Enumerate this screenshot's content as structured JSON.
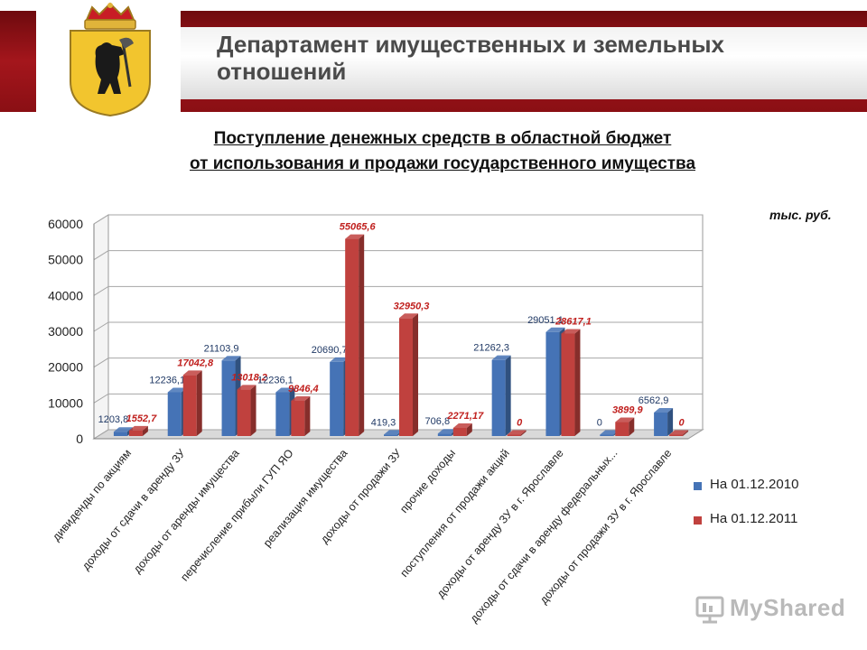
{
  "header": {
    "title": "Департамент имущественных и земельных отношений"
  },
  "chart_data": {
    "type": "bar",
    "title": "Поступление денежных средств в областной бюджет от использования и продажи государственного имущества",
    "title_lines": [
      "Поступление денежных средств в областной бюджет",
      "от использования и продажи государственного имущества"
    ],
    "unit": "тыс. руб.",
    "ylim": [
      0,
      60000
    ],
    "yticks": [
      0,
      10000,
      20000,
      30000,
      40000,
      50000,
      60000
    ],
    "grid": true,
    "legend_position": "right",
    "categories": [
      "дивиденды по акциям",
      "доходы от сдачи в аренду ЗУ",
      "доходы от аренды имущества",
      "перечисление прибыли ГУП ЯО",
      "реализация имущества",
      "доходы от продажи ЗУ",
      "прочие доходы",
      "поступления от продажи акций",
      "доходы от аренду ЗУ в г. Ярославле",
      "доходы от сдачи в аренду федеральных...",
      "доходы от продажи ЗУ в г. Ярославле"
    ],
    "series": [
      {
        "name": "На 01.12.2010",
        "color": "#4573b6",
        "label_color": "#1f3864",
        "values": [
          1203.8,
          12236.1,
          21103.9,
          12236.1,
          20690.7,
          419.3,
          706.8,
          21262.3,
          29051.1,
          0,
          6562.9
        ],
        "labels": [
          "1203,8",
          "12236,1",
          "21103,9",
          "12236,1",
          "20690,7",
          "419,3",
          "706,8",
          "21262,3",
          "29051,1",
          "0",
          "6562,9"
        ]
      },
      {
        "name": "На 01.12.2011",
        "color": "#c0413e",
        "label_color": "#c0201e",
        "values": [
          1552.7,
          17042.8,
          13018.2,
          9846.4,
          55065.6,
          32950.3,
          2271.17,
          0,
          28617.1,
          3899.9,
          0
        ],
        "labels": [
          "1552,7",
          "17042,8",
          "13018,2",
          "9846,4",
          "55065,6",
          "32950,3",
          "2271,17",
          "0",
          "28617,1",
          "3899,9",
          "0"
        ]
      }
    ]
  },
  "watermark": {
    "text": "MyShared"
  }
}
